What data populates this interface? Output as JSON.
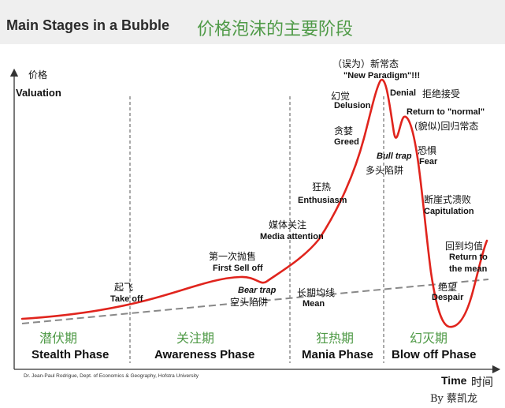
{
  "header": {
    "title_en": "Main Stages in a Bubble",
    "title_cn": "价格泡沫的主要阶段"
  },
  "axes": {
    "y_label_cn": "价格",
    "y_label_en": "Valuation",
    "x_label_en": "Time",
    "x_label_cn": "时间"
  },
  "annotations": {
    "misnamed_cn": "（误为）新常态",
    "new_paradigm": "\"New Paradigm\"!!!",
    "delusion_cn": "幻觉",
    "delusion_en": "Delusion",
    "denial": "Denial",
    "denial_cn": "拒绝接受",
    "return_normal": "Return to \"normal\"",
    "return_normal_cn": "(貌似)回归常态",
    "greed_cn": "贪婪",
    "greed_en": "Greed",
    "bull_trap_en": "Bull trap",
    "bull_trap_cn": "多头陷阱",
    "fear_cn": "恐惧",
    "fear_en": "Fear",
    "enthusiasm_cn": "狂热",
    "enthusiasm_en": "Enthusiasm",
    "capitulation_cn": "断崖式溃败",
    "capitulation_en": "Capitulation",
    "media_cn": "媒体关注",
    "media_en": "Media attention",
    "return_mean_cn": "回到均值",
    "return_mean_en1": "Return to",
    "return_mean_en2": "the mean",
    "first_sell_cn": "第一次抛售",
    "first_sell_en": "First Sell off",
    "takeoff_cn": "起飞",
    "takeoff_en": "Take off",
    "bear_trap_en": "Bear trap",
    "bear_trap_cn": "空头陷阱",
    "mean_cn": "长期均线",
    "mean_en": "Mean",
    "despair_cn": "绝望",
    "despair_en": "Despair"
  },
  "phases": [
    {
      "cn": "潜伏期",
      "en": "Stealth Phase"
    },
    {
      "cn": "关注期",
      "en": "Awareness Phase"
    },
    {
      "cn": "狂热期",
      "en": "Mania Phase"
    },
    {
      "cn": "幻灭期",
      "en": "Blow off Phase"
    }
  ],
  "credit": "Dr. Jean-Paul Rodrigue, Dept. of Economics & Geography, Hofstra University",
  "author": "By 蔡凯龙",
  "colors": {
    "curve": "#e0241d",
    "mean_line": "#888888",
    "phase_cn": "#4f9a47",
    "axis": "#333333"
  }
}
